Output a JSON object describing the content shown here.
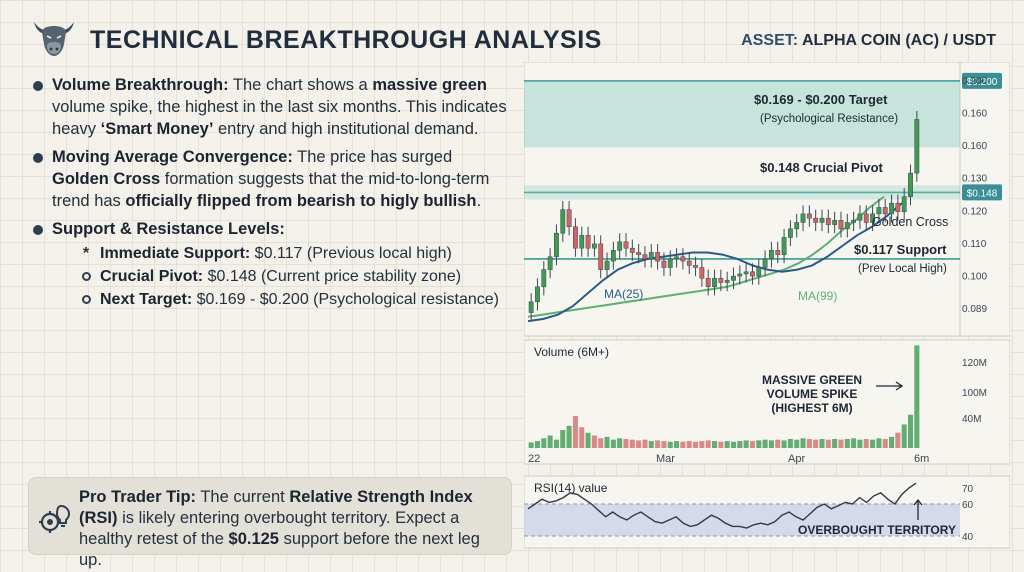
{
  "header": {
    "title": "TECHNICAL BREAKTHROUGH ANALYSIS",
    "asset_label": "ASSET:",
    "asset_value": "ALPHA COIN (AC) / USDT"
  },
  "bullets": {
    "volume": {
      "lead": "Volume Breakthrough:",
      "t1": " The chart shows a ",
      "b1": "massive green",
      "t2": " volume spike, the highest in the last six months. This indicates heavy ",
      "b2": "‘Smart Money’",
      "t3": " entry and high institutional demand."
    },
    "ma": {
      "lead": "Moving Average Convergence:",
      "t1": " The price has surged ",
      "b1": "Golden Cross",
      "t2": " formation suggests that the mid-to-long-term trend has ",
      "b2": "officially flipped from bearish to higly bullish",
      "t3": "."
    },
    "levels": {
      "lead": "Support & Resistance Levels:",
      "items": [
        {
          "marker": "*",
          "label": "Immediate Support:",
          "value": " $0.117 (Previous local high)"
        },
        {
          "marker": "ring",
          "label": "Crucial Pivot:",
          "value": " $0.148 (Current price stability zone)"
        },
        {
          "marker": "ring",
          "label": "Next Target:",
          "value": " $0.169 - $0.200 (Psychological resistance)"
        }
      ]
    }
  },
  "tip": {
    "lead": "Pro Trader Tip:",
    "t1": " The current ",
    "b1": "Relative Strength Index (RSI)",
    "t2": " is likely entering overbought territory. Expect a healthy retest of the ",
    "b2": "$0.125",
    "t3": " support before the next leg up."
  },
  "colors": {
    "up": "#3f9a52",
    "down": "#d06464",
    "ma25": "#2a5b87",
    "ma99": "#5fae72",
    "zone": "#8fd1c3",
    "level": "#3b9a92",
    "text": "#1d2733"
  },
  "chart_data": [
    {
      "type": "candlestick",
      "y_ticks": [
        "0.200",
        "0.160",
        "0.160",
        "0.130",
        "0.120",
        "0.110",
        "0.100",
        "0.089"
      ],
      "levels": [
        {
          "price": 0.2,
          "tag": "$0.200"
        },
        {
          "price": 0.148,
          "tag": "$0.148"
        },
        {
          "price": 0.117,
          "tag": ""
        }
      ],
      "target_zone": [
        0.169,
        0.2
      ],
      "annotations": {
        "target_title": "$0.169 - $0.200 Target",
        "target_sub": "(Psychological Resistance)",
        "pivot_title": "$0.148 Crucial Pivot",
        "golden_cross": "Golden Cross",
        "support_title": "$0.117 Support",
        "support_sub": "(Prev Local High)",
        "ma25": "MA(25)",
        "ma99": "MA(99)"
      },
      "candles": [
        [
          0.092,
          0.097
        ],
        [
          0.097,
          0.104
        ],
        [
          0.104,
          0.112
        ],
        [
          0.112,
          0.118
        ],
        [
          0.118,
          0.129
        ],
        [
          0.129,
          0.14
        ],
        [
          0.14,
          0.132
        ],
        [
          0.132,
          0.122
        ],
        [
          0.122,
          0.128
        ],
        [
          0.128,
          0.122
        ],
        [
          0.122,
          0.124
        ],
        [
          0.124,
          0.112
        ],
        [
          0.112,
          0.116
        ],
        [
          0.116,
          0.121
        ],
        [
          0.121,
          0.125
        ],
        [
          0.125,
          0.122
        ],
        [
          0.122,
          0.12
        ],
        [
          0.12,
          0.119
        ],
        [
          0.119,
          0.117
        ],
        [
          0.117,
          0.12
        ],
        [
          0.12,
          0.116
        ],
        [
          0.116,
          0.113
        ],
        [
          0.113,
          0.117
        ],
        [
          0.117,
          0.118
        ],
        [
          0.118,
          0.116
        ],
        [
          0.116,
          0.114
        ],
        [
          0.114,
          0.113
        ],
        [
          0.113,
          0.108
        ],
        [
          0.108,
          0.104
        ],
        [
          0.104,
          0.108
        ],
        [
          0.108,
          0.106
        ],
        [
          0.106,
          0.107
        ],
        [
          0.107,
          0.109
        ],
        [
          0.109,
          0.11
        ],
        [
          0.11,
          0.111
        ],
        [
          0.111,
          0.109
        ],
        [
          0.109,
          0.113
        ],
        [
          0.113,
          0.117
        ],
        [
          0.117,
          0.121
        ],
        [
          0.121,
          0.119
        ],
        [
          0.119,
          0.127
        ],
        [
          0.127,
          0.131
        ],
        [
          0.131,
          0.134
        ],
        [
          0.134,
          0.138
        ],
        [
          0.138,
          0.136
        ],
        [
          0.136,
          0.134
        ],
        [
          0.134,
          0.136
        ],
        [
          0.136,
          0.133
        ],
        [
          0.133,
          0.135
        ],
        [
          0.135,
          0.131
        ],
        [
          0.131,
          0.134
        ],
        [
          0.134,
          0.135
        ],
        [
          0.135,
          0.138
        ],
        [
          0.138,
          0.134
        ],
        [
          0.134,
          0.138
        ],
        [
          0.138,
          0.141
        ],
        [
          0.141,
          0.138
        ],
        [
          0.138,
          0.143
        ],
        [
          0.143,
          0.139
        ],
        [
          0.139,
          0.146
        ],
        [
          0.146,
          0.157
        ],
        [
          0.157,
          0.182
        ]
      ],
      "ma25": [
        0.088,
        0.089,
        0.091,
        0.095,
        0.101,
        0.107,
        0.112,
        0.115,
        0.117,
        0.118,
        0.119,
        0.12,
        0.12,
        0.119,
        0.117,
        0.114,
        0.112,
        0.111,
        0.112,
        0.114,
        0.118,
        0.123,
        0.128,
        0.132,
        0.137,
        0.143
      ],
      "ma99": [
        0.09,
        0.091,
        0.092,
        0.093,
        0.094,
        0.095,
        0.096,
        0.097,
        0.098,
        0.099,
        0.1,
        0.101,
        0.102,
        0.103,
        0.104,
        0.106,
        0.108,
        0.11,
        0.112,
        0.115,
        0.119,
        0.124,
        0.13,
        0.135,
        0.141,
        0.146
      ]
    },
    {
      "type": "bar",
      "title": "Volume (6M+)",
      "y_ticks": [
        "120M",
        "100M",
        "40M"
      ],
      "x_ticks": [
        "22",
        "Mar",
        "Apr",
        "6m"
      ],
      "annotation": [
        "MASSIVE GREEN",
        "VOLUME SPIKE",
        "(HIGHEST 6M)"
      ],
      "values": [
        8,
        10,
        14,
        18,
        12,
        26,
        32,
        46,
        30,
        22,
        18,
        14,
        16,
        12,
        14,
        13,
        12,
        11,
        12,
        10,
        11,
        10,
        9,
        10,
        9,
        10,
        9,
        10,
        11,
        10,
        9,
        10,
        9,
        10,
        11,
        10,
        11,
        12,
        11,
        12,
        11,
        13,
        12,
        14,
        13,
        12,
        13,
        12,
        13,
        12,
        13,
        14,
        12,
        13,
        12,
        14,
        13,
        16,
        22,
        34,
        48,
        148
      ],
      "up": [
        true,
        true,
        true,
        true,
        true,
        true,
        true,
        false,
        false,
        true,
        false,
        false,
        true,
        true,
        true,
        false,
        false,
        false,
        false,
        true,
        false,
        false,
        true,
        true,
        false,
        false,
        false,
        false,
        false,
        true,
        false,
        true,
        true,
        true,
        true,
        false,
        true,
        true,
        true,
        false,
        true,
        true,
        true,
        true,
        false,
        false,
        true,
        false,
        true,
        false,
        true,
        true,
        true,
        false,
        true,
        true,
        false,
        true,
        false,
        true,
        true,
        true
      ]
    },
    {
      "type": "line",
      "title": "RSI(14) value",
      "y_ticks": [
        "70",
        "60",
        "40"
      ],
      "ylim": [
        35,
        75
      ],
      "band": [
        40,
        60
      ],
      "annotation": "OVERBOUGHT TERRITORY",
      "values": [
        57,
        60,
        63,
        61,
        62,
        64,
        67,
        66,
        63,
        60,
        56,
        52,
        55,
        52,
        50,
        53,
        55,
        52,
        49,
        48,
        50,
        52,
        48,
        46,
        47,
        50,
        53,
        51,
        48,
        46,
        46,
        45,
        47,
        48,
        47,
        49,
        53,
        55,
        52,
        50,
        54,
        58,
        60,
        57,
        59,
        61,
        60,
        64,
        61,
        65,
        67,
        63,
        60,
        66,
        70,
        73
      ]
    }
  ]
}
